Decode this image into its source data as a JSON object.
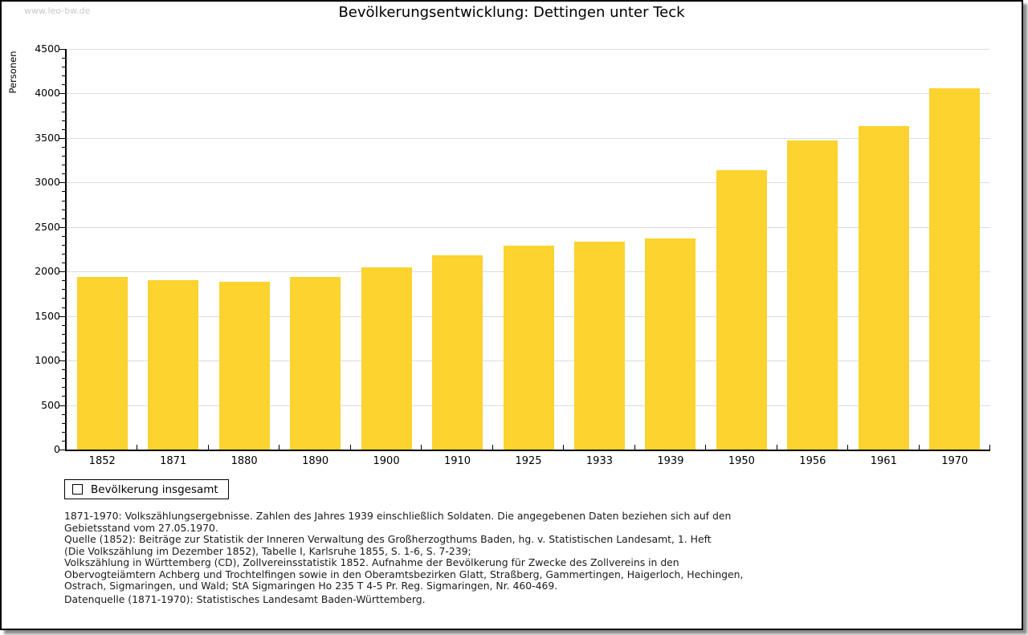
{
  "page": {
    "watermark": "www.leo-bw.de",
    "title": "Bevölkerungsentwicklung: Dettingen unter Teck"
  },
  "chart_data": {
    "type": "bar",
    "title": "Bevölkerungsentwicklung: Dettingen unter Teck",
    "xlabel": "",
    "ylabel": "Personen",
    "categories": [
      "1852",
      "1871",
      "1880",
      "1890",
      "1900",
      "1910",
      "1925",
      "1933",
      "1939",
      "1950",
      "1956",
      "1961",
      "1970"
    ],
    "series": [
      {
        "name": "Bevölkerung insgesamt",
        "values": [
          1940,
          1905,
          1885,
          1940,
          2050,
          2180,
          2290,
          2335,
          2370,
          3135,
          3470,
          3630,
          4060
        ]
      }
    ],
    "ylim": [
      0,
      4500
    ],
    "ytick_step": 500,
    "yminor_step": 100,
    "grid": true,
    "legend_position": "bottom-left"
  },
  "legend": {
    "label": "Bevölkerung insgesamt"
  },
  "colors": {
    "bar": "#FCD32F",
    "grid": "#DCDCDC",
    "axis": "#000000",
    "watermark": "#C9C9C9"
  },
  "footer": {
    "lines": [
      "1871-1970: Volkszählungsergebnisse. Zahlen des Jahres 1939 einschließlich Soldaten. Die angegebenen Daten beziehen sich auf den",
      "Gebietsstand vom 27.05.1970.",
      "Quelle (1852): Beiträge zur Statistik der Inneren Verwaltung des Großherzogthums Baden, hg. v. Statistischen Landesamt, 1. Heft",
      "(Die Volkszählung im Dezember 1852), Tabelle I, Karlsruhe 1855, S. 1-6, S. 7-239;",
      "Volkszählung in Württemberg (CD), Zollvereinsstatistik 1852. Aufnahme der Bevölkerung für Zwecke des Zollvereins in den",
      "Obervogteiämtern Achberg und Trochtelfingen sowie in den Oberamtsbezirken Glatt, Straßberg, Gammertingen, Haigerloch, Hechingen,",
      "Ostrach, Sigmaringen, und Wald; StA Sigmaringen Ho 235 T 4-5 Pr. Reg. Sigmaringen, Nr. 460-469."
    ],
    "datasource": "Datenquelle (1871-1970): Statistisches Landesamt Baden-Württemberg."
  }
}
